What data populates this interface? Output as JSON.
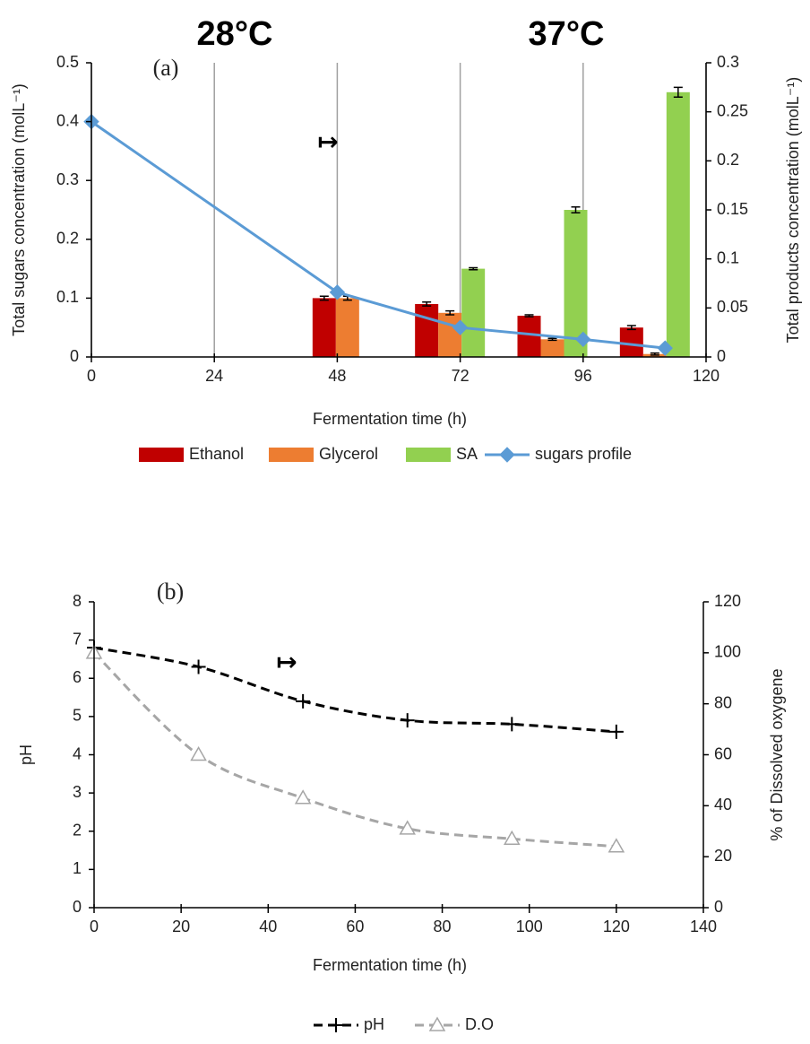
{
  "chart_data": [
    {
      "type": "bar_line",
      "panel_label": "(a)",
      "annotations": [
        "28°C",
        "37°C",
        "↦"
      ],
      "xlabel": "Fermentation time (h)",
      "ylabel": "Total sugars concentration (molL⁻¹)",
      "y2label": "Total products concentration (molL⁻¹)",
      "xlim": [
        0,
        120
      ],
      "xticks": [
        0,
        24,
        48,
        72,
        96,
        120
      ],
      "ylim": [
        0,
        0.5
      ],
      "yticks": [
        0,
        0.1,
        0.2,
        0.3,
        0.4,
        0.5
      ],
      "y2lim": [
        0,
        0.3
      ],
      "y2ticks": [
        0,
        0.05,
        0.1,
        0.15,
        0.2,
        0.25,
        0.3
      ],
      "xgrid": true,
      "legend": "bottom",
      "series": [
        {
          "name": "Ethanol",
          "type": "bar",
          "axis": "y2",
          "color": "#c00000",
          "x": [
            50,
            70,
            90,
            110
          ],
          "values": [
            0.06,
            0.054,
            0.042,
            0.03
          ],
          "errors": [
            0.002,
            0.002,
            0.001,
            0.002
          ]
        },
        {
          "name": "Glycerol",
          "type": "bar",
          "axis": "y2",
          "color": "#ed7d31",
          "x": [
            50,
            70,
            90,
            110
          ],
          "values": [
            0.06,
            0.045,
            0.018,
            0.003
          ],
          "errors": [
            0.002,
            0.002,
            0.001,
            0.001
          ]
        },
        {
          "name": "SA",
          "type": "bar",
          "axis": "y2",
          "color": "#92d050",
          "x": [
            50,
            70,
            90,
            110
          ],
          "values": [
            null,
            0.09,
            0.15,
            0.27
          ],
          "errors": [
            null,
            0.001,
            0.003,
            0.005
          ]
        },
        {
          "name": "sugars profile",
          "type": "line",
          "axis": "y",
          "color": "#5b9bd5",
          "marker": "diamond",
          "x": [
            0,
            48,
            72,
            96,
            112
          ],
          "values": [
            0.4,
            0.11,
            0.05,
            0.03,
            0.015
          ]
        }
      ]
    },
    {
      "type": "line",
      "panel_label": "(b)",
      "annotations": [
        "↦"
      ],
      "xlabel": "Fermentation time (h)",
      "ylabel": "pH",
      "y2label": "% of Dissolved oxygene",
      "xlim": [
        0,
        140
      ],
      "xticks": [
        0,
        20,
        40,
        60,
        80,
        100,
        120,
        140
      ],
      "ylim": [
        0,
        8
      ],
      "yticks": [
        0,
        1,
        2,
        3,
        4,
        5,
        6,
        7,
        8
      ],
      "y2lim": [
        0,
        120
      ],
      "y2ticks": [
        0,
        20,
        40,
        60,
        80,
        100,
        120
      ],
      "smooth": true,
      "legend": "bottom",
      "series": [
        {
          "name": "pH",
          "type": "line",
          "axis": "y",
          "color": "#000000",
          "marker": "plus",
          "dash": "dashed",
          "x": [
            0,
            24,
            48,
            72,
            96,
            120
          ],
          "values": [
            6.8,
            6.3,
            5.4,
            4.9,
            4.8,
            4.6
          ]
        },
        {
          "name": "D.O",
          "type": "line",
          "axis": "y2",
          "color": "#a6a6a6",
          "marker": "triangle",
          "dash": "dashed",
          "x": [
            0,
            24,
            48,
            72,
            96,
            120
          ],
          "values": [
            100,
            60,
            43,
            31,
            27,
            24
          ]
        }
      ]
    }
  ]
}
